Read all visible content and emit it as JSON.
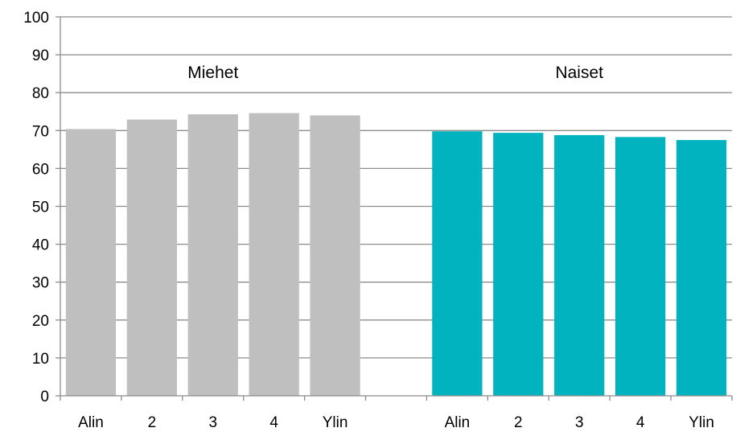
{
  "chart_data": {
    "type": "bar",
    "categories": [
      "Alin",
      "2",
      "3",
      "4",
      "Ylin",
      "",
      "Alin",
      "2",
      "3",
      "4",
      "Ylin"
    ],
    "series": [
      {
        "values": [
          70.4,
          72.9,
          74.3,
          74.6,
          74.0,
          null,
          null,
          null,
          null,
          null,
          null
        ],
        "color": "#BFBFBF"
      },
      {
        "values": [
          null,
          null,
          null,
          null,
          null,
          null,
          69.8,
          69.4,
          68.8,
          68.3,
          67.5
        ],
        "color": "#00B3BE"
      }
    ],
    "group_labels": [
      {
        "text": "Miehet",
        "category_index": 2
      },
      {
        "text": "Naiset",
        "category_index": 8
      }
    ],
    "ylim": [
      0,
      100
    ],
    "yticks": [
      0,
      10,
      20,
      30,
      40,
      50,
      60,
      70,
      80,
      90,
      100
    ],
    "grid": true,
    "title": "",
    "xlabel": "",
    "ylabel": ""
  }
}
